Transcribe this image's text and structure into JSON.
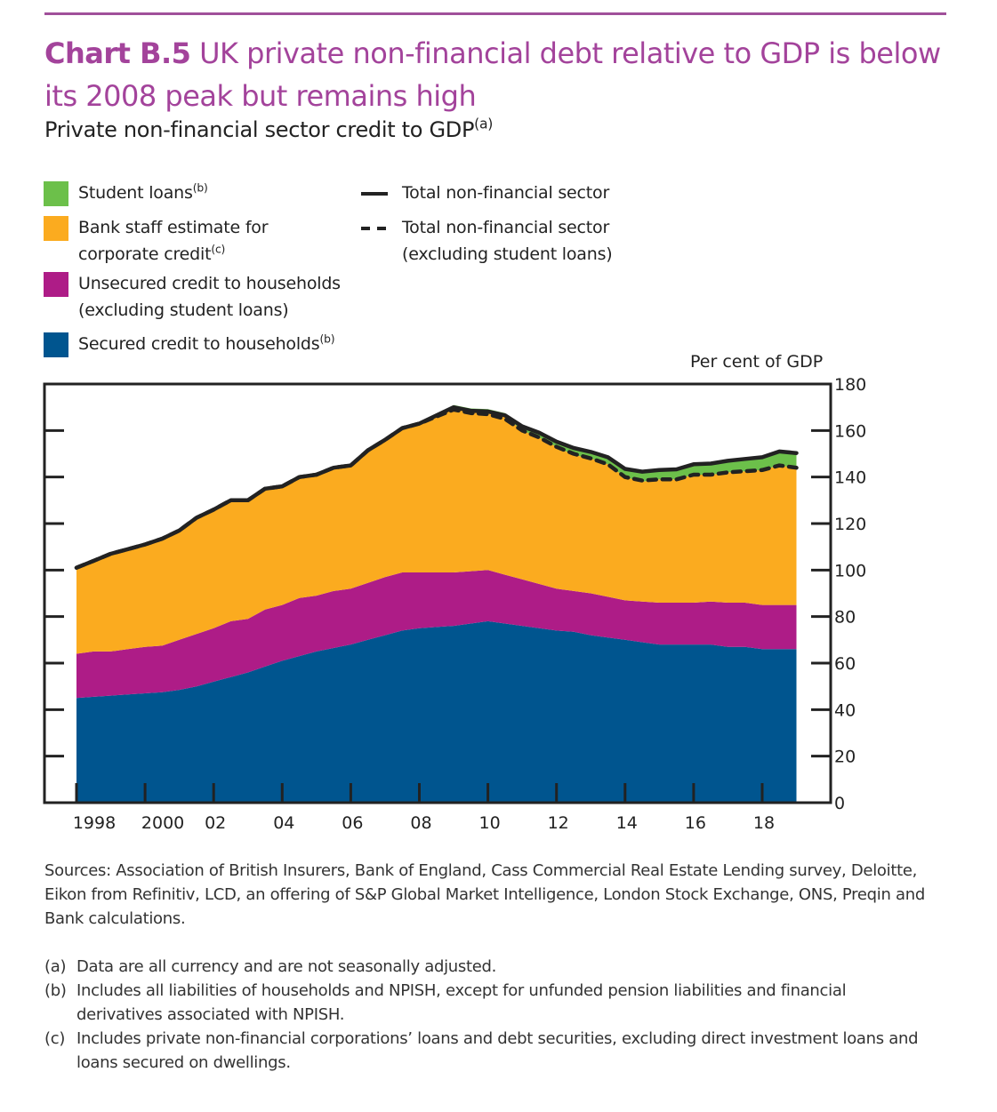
{
  "header": {
    "chart_number": "Chart B.5",
    "title_rest": " UK private non-financial debt relative to GDP is below its 2008 peak but remains high",
    "subtitle": "Private non-financial sector credit to GDP",
    "subtitle_note": "(a)"
  },
  "legend": {
    "student": {
      "label": "Student loans",
      "note": "(b)"
    },
    "corporate": {
      "label_1": "Bank staff estimate for",
      "label_2": "corporate credit",
      "note": "(c)"
    },
    "unsecured": {
      "label_1": "Unsecured credit to households",
      "label_2": "(excluding student loans)"
    },
    "secured": {
      "label": "Secured credit to households",
      "note": "(b)"
    },
    "total": {
      "label": "Total non-financial sector"
    },
    "total_ex": {
      "label_1": "Total non-financial sector",
      "label_2": "(excluding student loans)"
    }
  },
  "colors": {
    "secured": "#00558f",
    "unsecured": "#ae1c87",
    "corporate": "#fbab1f",
    "student": "#6cc04a",
    "line": "#222222",
    "title": "#a3439b"
  },
  "chart_data": {
    "type": "area",
    "stacked": true,
    "title": "UK private non-financial debt relative to GDP is below its 2008 peak but remains high",
    "subtitle": "Private non-financial sector credit to GDP",
    "ylabel": "Per cent of GDP",
    "ylim": [
      0,
      180
    ],
    "yticks": [
      0,
      20,
      40,
      60,
      80,
      100,
      120,
      140,
      160,
      180
    ],
    "xlim": [
      1997.7,
      2020.2
    ],
    "xticks": [
      1998,
      2000,
      2002,
      2004,
      2006,
      2008,
      2010,
      2012,
      2014,
      2016,
      2018
    ],
    "xtick_labels": [
      "1998",
      "2000",
      "02",
      "04",
      "06",
      "08",
      "10",
      "12",
      "14",
      "16",
      "18"
    ],
    "y_axis_side": "right",
    "x": [
      1998,
      1998.5,
      1999,
      1999.5,
      2000,
      2000.5,
      2001,
      2001.5,
      2002,
      2002.5,
      2003,
      2003.5,
      2004,
      2004.5,
      2005,
      2005.5,
      2006,
      2006.5,
      2007,
      2007.5,
      2008,
      2008.5,
      2009,
      2009.5,
      2010,
      2010.5,
      2011,
      2011.5,
      2012,
      2012.5,
      2013,
      2013.5,
      2014,
      2014.5,
      2015,
      2015.5,
      2016,
      2016.5,
      2017,
      2017.5,
      2018,
      2018.5,
      2019
    ],
    "series": [
      {
        "name": "Secured credit to households",
        "kind": "area",
        "values": [
          45,
          45.5,
          46,
          46.5,
          47,
          47.5,
          48.5,
          50,
          52,
          54,
          56,
          58.5,
          61,
          63,
          65,
          66.5,
          68,
          70,
          72,
          74,
          75,
          75.5,
          76,
          77,
          78,
          77,
          76,
          75,
          74,
          73.5,
          72,
          71,
          70,
          69,
          68,
          68,
          68,
          68,
          67,
          67,
          66,
          66,
          66
        ]
      },
      {
        "name": "Unsecured credit to households (excluding student loans)",
        "kind": "area",
        "values": [
          19,
          19.5,
          19,
          19.5,
          20,
          20,
          21.5,
          22.5,
          23,
          24,
          23,
          24.5,
          24,
          25,
          24,
          24.5,
          24,
          24.5,
          25,
          25,
          24,
          23.5,
          23,
          22.5,
          22,
          21,
          20,
          19,
          18,
          17.5,
          18,
          17.5,
          17,
          17.5,
          18,
          18,
          18,
          18.5,
          19,
          19,
          19,
          19,
          19
        ]
      },
      {
        "name": "Bank staff estimate for corporate credit",
        "kind": "area",
        "values": [
          37,
          39,
          42,
          43,
          44,
          46,
          47,
          50,
          51,
          52,
          51,
          52,
          51,
          52,
          52,
          53.5,
          53,
          57,
          59,
          62,
          64,
          67,
          71,
          69,
          68,
          68,
          64,
          63,
          61,
          58.5,
          58,
          57,
          53,
          51.5,
          53,
          53,
          55,
          54.5,
          56,
          56.5,
          58,
          60,
          59
        ]
      },
      {
        "name": "Student loans",
        "kind": "area",
        "values": [
          0,
          0,
          0,
          0,
          0,
          0,
          0,
          0,
          0,
          0,
          0,
          0,
          0,
          0,
          0,
          0,
          0,
          0,
          0,
          0,
          0,
          0.5,
          1,
          1,
          1.2,
          1.5,
          1.8,
          2,
          2.2,
          2.5,
          2.8,
          3,
          3.5,
          3.8,
          4,
          4.3,
          4.5,
          4.8,
          5,
          5.3,
          5.5,
          6,
          6.3
        ]
      },
      {
        "name": "Total non-financial sector",
        "kind": "line",
        "style": "solid",
        "values": [
          101,
          104,
          107,
          109,
          111,
          113.5,
          117,
          122.5,
          126,
          130,
          130,
          135,
          136,
          140,
          141,
          144,
          145,
          151.5,
          156,
          161,
          163,
          166.5,
          170,
          168.5,
          168.2,
          166.5,
          161.8,
          159,
          155.2,
          152.5,
          150.8,
          148.5,
          143.5,
          142.3,
          143,
          143.3,
          145.5,
          145.8,
          147,
          147.8,
          148.5,
          151,
          150.3
        ]
      },
      {
        "name": "Total non-financial sector (excluding student loans)",
        "kind": "line",
        "style": "dashed",
        "values": [
          101,
          104,
          107,
          109,
          111,
          113.5,
          117,
          122.5,
          126,
          130,
          130,
          135,
          136,
          140,
          141,
          144,
          145,
          151.5,
          156,
          161,
          163,
          166,
          169,
          167.5,
          167,
          165,
          160,
          157,
          153,
          150,
          148,
          145.5,
          140,
          138.5,
          139,
          139,
          141,
          141,
          142,
          142.5,
          143,
          145,
          144
        ]
      }
    ]
  },
  "sources": "Sources: Association of British Insurers, Bank of England, Cass Commercial Real Estate Lending survey, Deloitte, Eikon from Refinitiv, LCD, an offering of S&P Global Market Intelligence, London Stock Exchange, ONS, Preqin and Bank calculations.",
  "notes": [
    {
      "key": "(a)",
      "text": "Data are all currency and are not seasonally adjusted."
    },
    {
      "key": "(b)",
      "text": "Includes all liabilities of households and NPISH, except for unfunded pension liabilities and financial derivatives associated with NPISH."
    },
    {
      "key": "(c)",
      "text": "Includes private non-financial corporations’ loans and debt securities, excluding direct investment loans and loans secured on dwellings."
    }
  ]
}
